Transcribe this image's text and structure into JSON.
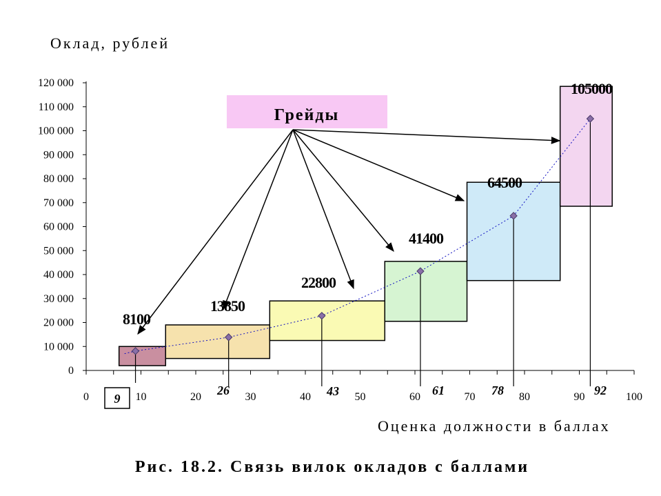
{
  "chart_data": {
    "type": "scatter",
    "title": "Рис. 18.2. Связь вилок окладов с баллами",
    "ylabel": "Оклад, рублей",
    "xlabel": "Оценка должности в баллах",
    "xlim": [
      0,
      100
    ],
    "ylim": [
      0,
      120000
    ],
    "x_ticks": [
      "0",
      "10",
      "20",
      "30",
      "40",
      "50",
      "60",
      "70",
      "80",
      "90",
      "100"
    ],
    "y_ticks": [
      "0",
      "10 000",
      "20 000",
      "30 000",
      "40 000",
      "50 000",
      "60 000",
      "70 000",
      "80 000",
      "90 000",
      "100 000",
      "110 000",
      "120 000"
    ],
    "points": [
      {
        "x": 9,
        "y": 8100,
        "x_label": "9",
        "y_label": "8100"
      },
      {
        "x": 26,
        "y": 13850,
        "x_label": "26",
        "y_label": "13850"
      },
      {
        "x": 43,
        "y": 22800,
        "x_label": "43",
        "y_label": "22800"
      },
      {
        "x": 61,
        "y": 41400,
        "x_label": "61",
        "y_label": "41400"
      },
      {
        "x": 78,
        "y": 64500,
        "x_label": "78",
        "y_label": "64500"
      },
      {
        "x": 92,
        "y": 105000,
        "x_label": "92",
        "y_label": "105000"
      }
    ],
    "grades": [
      {
        "x0": 6,
        "x1": 14.5,
        "y0": 2000,
        "y1": 10000,
        "color": "#c98fa0"
      },
      {
        "x0": 14.5,
        "x1": 33.5,
        "y0": 5000,
        "y1": 19000,
        "color": "#f6e2ad"
      },
      {
        "x0": 33.5,
        "x1": 54.5,
        "y0": 12500,
        "y1": 29000,
        "color": "#fafab4"
      },
      {
        "x0": 54.5,
        "x1": 69.5,
        "y0": 20500,
        "y1": 45500,
        "color": "#d6f4d2"
      },
      {
        "x0": 69.5,
        "x1": 86.5,
        "y0": 37500,
        "y1": 78500,
        "color": "#cfeaf8"
      },
      {
        "x0": 86.5,
        "x1": 96,
        "y0": 68500,
        "y1": 118500,
        "color": "#f3d6f0"
      }
    ],
    "annotation": {
      "text": "Грейды",
      "color": "#f8c8f4"
    },
    "trend_color": "#1010c0",
    "grid": false,
    "legend": "none"
  }
}
